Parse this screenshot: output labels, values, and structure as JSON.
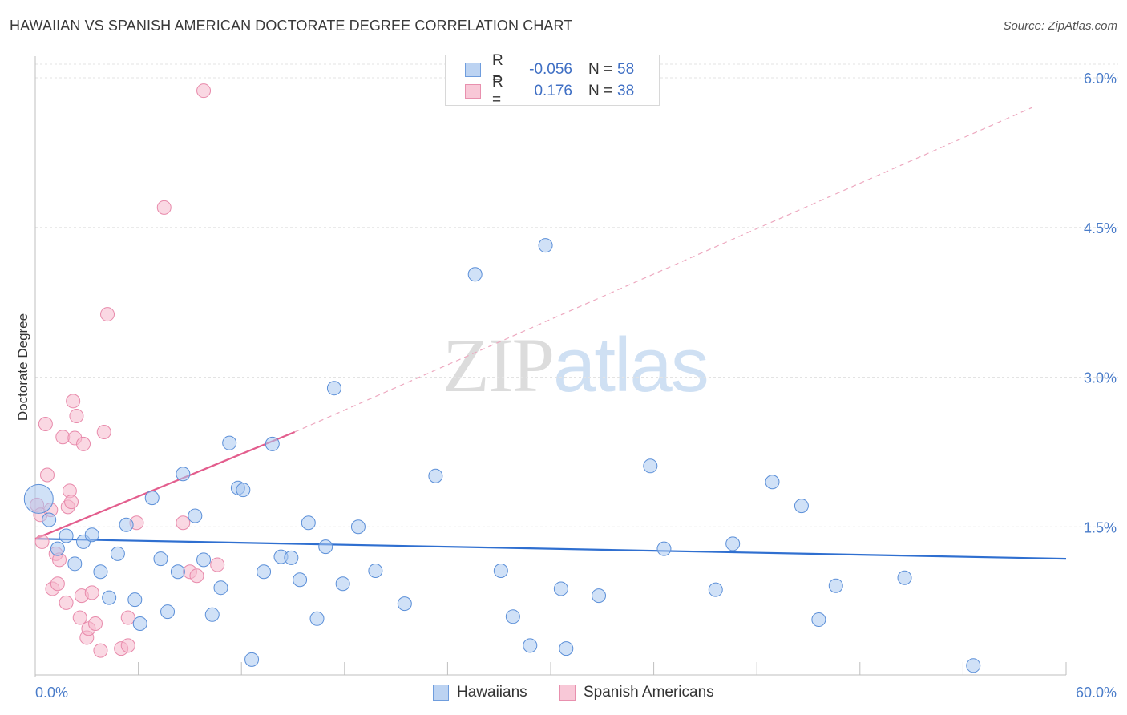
{
  "title": "HAWAIIAN VS SPANISH AMERICAN DOCTORATE DEGREE CORRELATION CHART",
  "source": "Source: ZipAtlas.com",
  "watermark": {
    "zip": "ZIP",
    "atlas": "atlas"
  },
  "colors": {
    "blue": "#4a86d8",
    "blue_fill": "#a9c8f0",
    "pink": "#e8709a",
    "pink_fill": "#f5b8cc",
    "tick": "#4a7cc9"
  },
  "legend": {
    "rows": [
      {
        "r_label": "R =",
        "r_value": "-0.056",
        "n_label": "N =",
        "n_value": "58"
      },
      {
        "r_label": "R =",
        "r_value": "0.176",
        "n_label": "N =",
        "n_value": "38"
      }
    ]
  },
  "chart_data": {
    "type": "scatter",
    "title": "HAWAIIAN VS SPANISH AMERICAN DOCTORATE DEGREE CORRELATION CHART",
    "xlabel": "",
    "ylabel": "Doctorate Degree",
    "xlim": [
      0,
      60
    ],
    "ylim": [
      0,
      6.2
    ],
    "x_tick_labels": [
      "0.0%",
      "60.0%"
    ],
    "y_ticks": [
      1.5,
      3.0,
      4.5,
      6.0
    ],
    "y_tick_labels": [
      "1.5%",
      "3.0%",
      "4.5%",
      "6.0%"
    ],
    "grid": true,
    "legend_position": "top-center",
    "series": [
      {
        "name": "Hawaiians",
        "color": "#4a86d8",
        "trend": {
          "x": [
            0,
            60
          ],
          "y": [
            1.38,
            1.18
          ]
        },
        "points": [
          [
            0.2,
            1.78
          ],
          [
            0.8,
            1.57
          ],
          [
            1.3,
            1.28
          ],
          [
            1.8,
            1.41
          ],
          [
            2.3,
            1.13
          ],
          [
            2.8,
            1.35
          ],
          [
            3.3,
            1.42
          ],
          [
            3.8,
            1.05
          ],
          [
            4.3,
            0.79
          ],
          [
            4.8,
            1.23
          ],
          [
            5.3,
            1.52
          ],
          [
            5.8,
            0.77
          ],
          [
            6.1,
            0.53
          ],
          [
            6.8,
            1.79
          ],
          [
            7.3,
            1.18
          ],
          [
            7.7,
            0.65
          ],
          [
            8.3,
            1.05
          ],
          [
            8.6,
            2.03
          ],
          [
            9.3,
            1.61
          ],
          [
            9.8,
            1.17
          ],
          [
            10.3,
            0.62
          ],
          [
            10.8,
            0.89
          ],
          [
            11.3,
            2.34
          ],
          [
            11.8,
            1.89
          ],
          [
            12.1,
            1.87
          ],
          [
            12.6,
            0.17
          ],
          [
            13.3,
            1.05
          ],
          [
            13.8,
            2.33
          ],
          [
            14.3,
            1.2
          ],
          [
            14.9,
            1.19
          ],
          [
            15.4,
            0.97
          ],
          [
            15.9,
            1.54
          ],
          [
            16.4,
            0.58
          ],
          [
            16.9,
            1.3
          ],
          [
            17.4,
            2.89
          ],
          [
            17.9,
            0.93
          ],
          [
            18.8,
            1.5
          ],
          [
            19.8,
            1.06
          ],
          [
            21.5,
            0.73
          ],
          [
            23.3,
            2.01
          ],
          [
            25.6,
            4.03
          ],
          [
            27.1,
            1.06
          ],
          [
            27.8,
            0.6
          ],
          [
            28.8,
            0.31
          ],
          [
            29.7,
            4.32
          ],
          [
            30.6,
            0.88
          ],
          [
            30.9,
            0.28
          ],
          [
            32.8,
            0.81
          ],
          [
            35.8,
            2.11
          ],
          [
            36.6,
            1.28
          ],
          [
            39.6,
            0.87
          ],
          [
            40.6,
            1.33
          ],
          [
            42.9,
            1.95
          ],
          [
            44.6,
            1.71
          ],
          [
            45.6,
            0.57
          ],
          [
            46.6,
            0.91
          ],
          [
            50.6,
            0.99
          ],
          [
            54.6,
            0.11
          ]
        ]
      },
      {
        "name": "Spanish Americans",
        "color": "#e8709a",
        "trend": {
          "x": [
            0,
            15.1
          ],
          "y": [
            1.38,
            2.45
          ]
        },
        "trend_extended": {
          "x": [
            15.1,
            58
          ],
          "y": [
            2.45,
            5.7
          ]
        },
        "points": [
          [
            0.1,
            1.72
          ],
          [
            0.3,
            1.62
          ],
          [
            0.4,
            1.35
          ],
          [
            0.6,
            2.53
          ],
          [
            0.7,
            2.02
          ],
          [
            0.9,
            1.67
          ],
          [
            1.0,
            0.88
          ],
          [
            1.2,
            1.23
          ],
          [
            1.3,
            0.93
          ],
          [
            1.4,
            1.17
          ],
          [
            1.6,
            2.4
          ],
          [
            1.8,
            0.74
          ],
          [
            1.9,
            1.7
          ],
          [
            2.0,
            1.86
          ],
          [
            2.1,
            1.75
          ],
          [
            2.2,
            2.76
          ],
          [
            2.3,
            2.39
          ],
          [
            2.4,
            2.61
          ],
          [
            2.6,
            0.59
          ],
          [
            2.7,
            0.81
          ],
          [
            2.8,
            2.33
          ],
          [
            3.0,
            0.39
          ],
          [
            3.1,
            0.48
          ],
          [
            3.3,
            0.84
          ],
          [
            3.5,
            0.53
          ],
          [
            3.8,
            0.26
          ],
          [
            4.0,
            2.45
          ],
          [
            4.2,
            3.63
          ],
          [
            5.0,
            0.28
          ],
          [
            5.4,
            0.31
          ],
          [
            5.4,
            0.59
          ],
          [
            5.9,
            1.54
          ],
          [
            7.5,
            4.7
          ],
          [
            8.6,
            1.54
          ],
          [
            9.0,
            1.05
          ],
          [
            9.4,
            1.01
          ],
          [
            9.8,
            5.87
          ],
          [
            10.6,
            1.12
          ]
        ]
      }
    ],
    "bottom_legend": [
      "Hawaiians",
      "Spanish Americans"
    ]
  }
}
